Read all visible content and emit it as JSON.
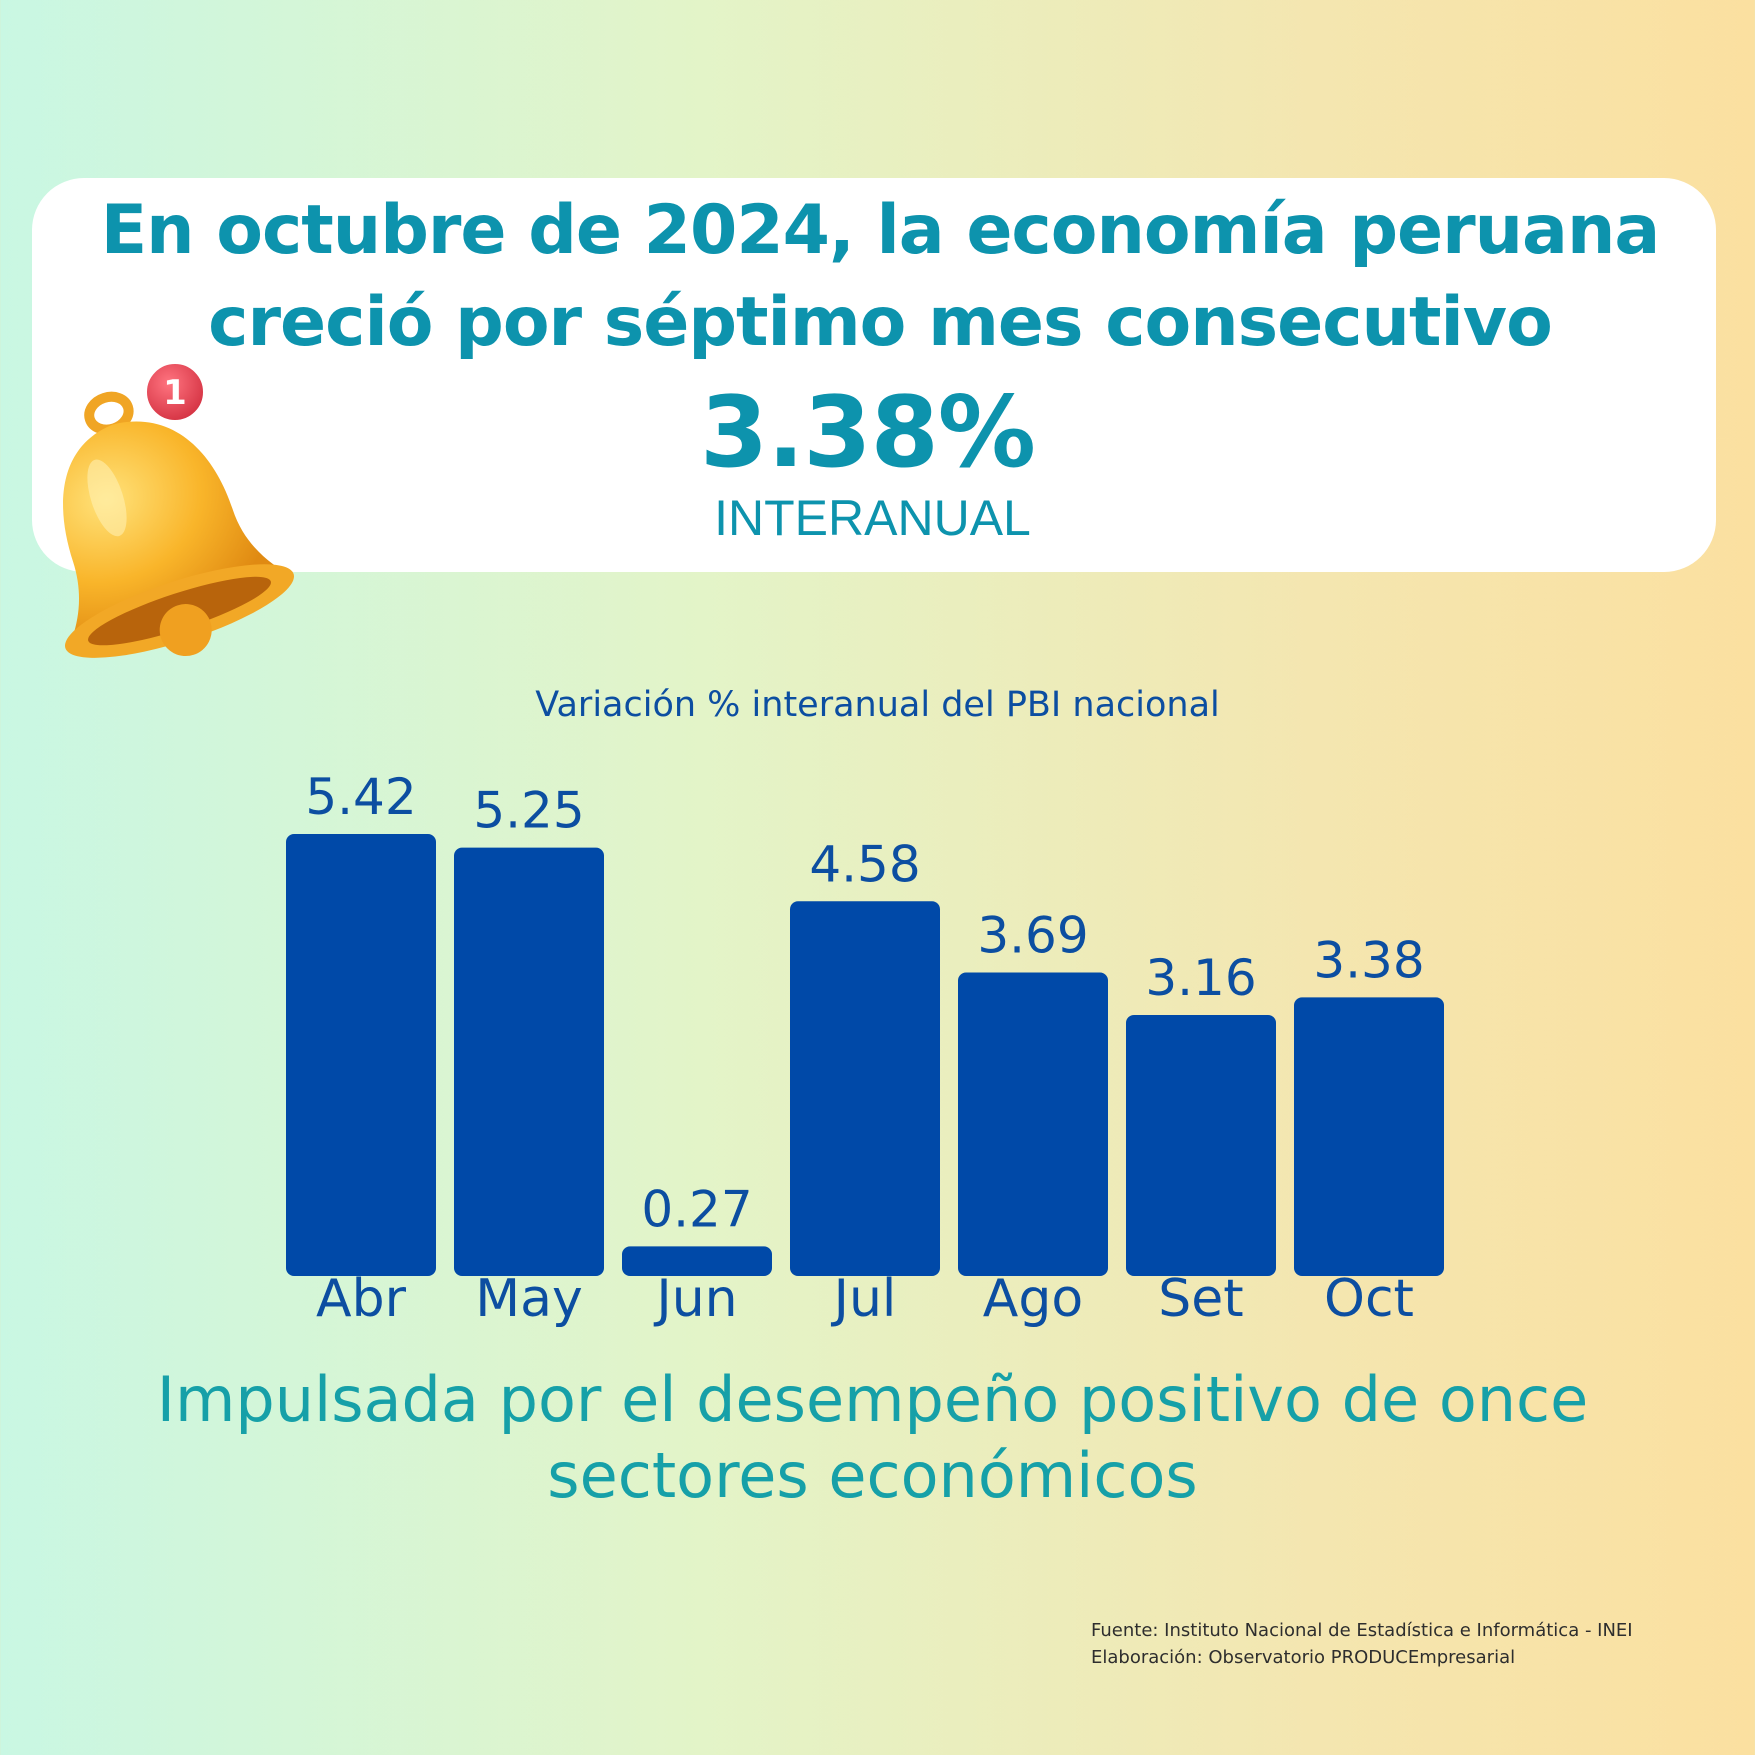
{
  "header": {
    "headline_line1": "En octubre de 2024, la economía peruana",
    "headline_line2": "creció por séptimo mes consecutivo",
    "big_value": "3.38%",
    "big_caption": "INTERANUAL"
  },
  "bell": {
    "icon": "bell-icon",
    "badge_count": "1",
    "badge_color": "#e8404f",
    "bell_color": "#f9b52a"
  },
  "colors": {
    "accent": "#0d93ad",
    "bar": "#0049a8",
    "chart_text": "#0c4ea1",
    "subtitle": "#16a0a8"
  },
  "chart_data": {
    "type": "bar",
    "title": "Variación % interanual  del PBI nacional",
    "categories": [
      "Abr",
      "May",
      "Jun",
      "Jul",
      "Ago",
      "Set",
      "Oct"
    ],
    "values": [
      5.42,
      5.25,
      0.27,
      4.58,
      3.69,
      3.16,
      3.38
    ],
    "value_labels": [
      "5.42",
      "5.25",
      "0.27",
      "4.58",
      "3.69",
      "3.16",
      "3.38"
    ],
    "xlabel": "",
    "ylabel": "",
    "ylim": [
      0,
      5.42
    ],
    "grid": false,
    "legend": "none"
  },
  "subtitle": {
    "line1": "Impulsada por el desempeño positivo de once",
    "line2": "sectores económicos"
  },
  "source": {
    "line1": "Fuente: Instituto Nacional de Estadística e Informática - INEI",
    "line2": "Elaboración: Observatorio PRODUCEmpresarial"
  }
}
